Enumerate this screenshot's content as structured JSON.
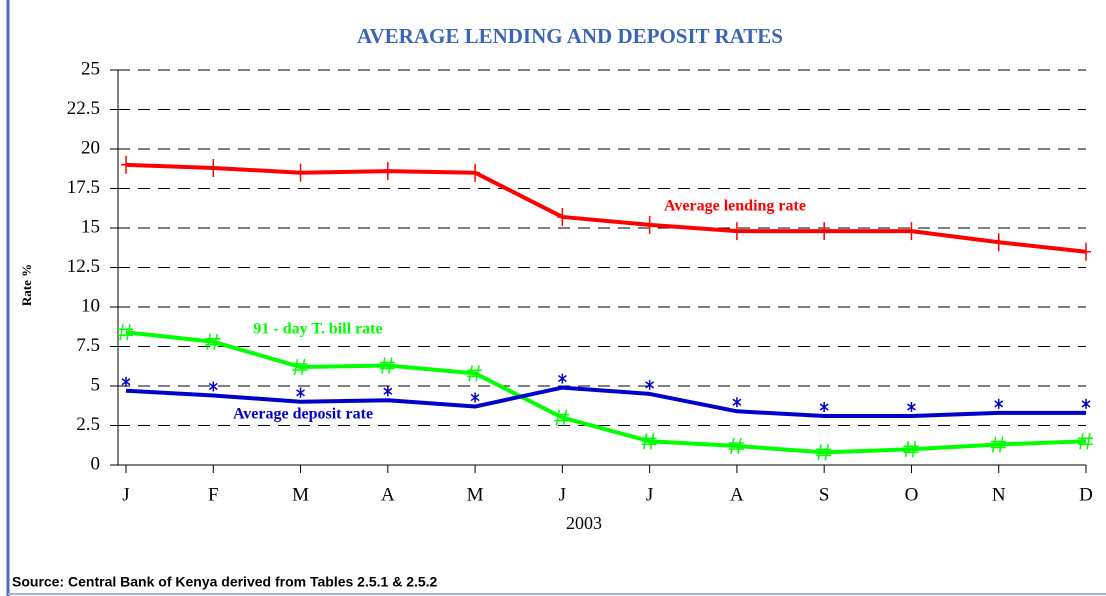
{
  "chart_data": {
    "type": "line",
    "title": "AVERAGE LENDING AND DEPOSIT RATES",
    "y_label": "Rate %",
    "x_label": "2003",
    "source": "Source:  Central Bank of Kenya derived from Tables 2.5.1 & 2.5.2",
    "categories": [
      "J",
      "F",
      "M",
      "A",
      "M",
      "J",
      "J",
      "A",
      "S",
      "O",
      "N",
      "D"
    ],
    "series": [
      {
        "name": "Average  lending rate",
        "color": "#ff0000",
        "values": [
          19.0,
          18.8,
          18.5,
          18.6,
          18.5,
          15.7,
          15.2,
          14.8,
          14.8,
          14.8,
          14.1,
          13.5
        ]
      },
      {
        "name": "91  - day T. bill rate",
        "color": "#00ff00",
        "values": [
          8.4,
          7.8,
          6.2,
          6.3,
          5.8,
          3.0,
          1.5,
          1.2,
          0.8,
          1.0,
          1.3,
          1.5
        ]
      },
      {
        "name": "Average  deposit rate",
        "color": "#0000cc",
        "values": [
          4.7,
          4.4,
          4.0,
          4.1,
          3.7,
          4.9,
          4.5,
          3.4,
          3.1,
          3.1,
          3.3,
          3.3
        ]
      }
    ],
    "ylim": [
      0,
      25
    ],
    "yticks": [
      0,
      2.5,
      5,
      7.5,
      10,
      12.5,
      15,
      17.5,
      20,
      22.5,
      25
    ],
    "grid": true
  }
}
